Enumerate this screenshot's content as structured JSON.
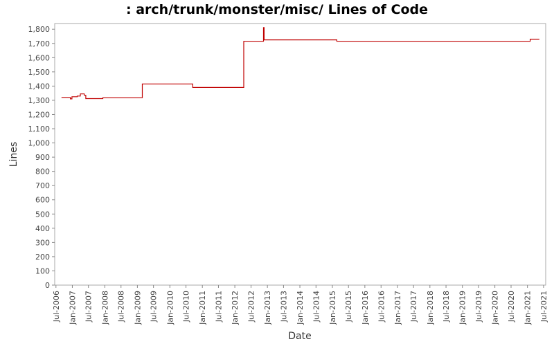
{
  "chart_data": {
    "type": "line",
    "title": ": arch/trunk/monster/misc/ Lines of Code",
    "xlabel": "Date",
    "ylabel": "Lines",
    "ylim": [
      0,
      1840
    ],
    "xlim": [
      "2006-06-17",
      "2021-07-25"
    ],
    "grid": false,
    "legend": "none",
    "yticks": [
      0,
      100,
      200,
      300,
      400,
      500,
      600,
      700,
      800,
      900,
      1000,
      1100,
      1200,
      1300,
      1400,
      1500,
      1600,
      1700,
      1800
    ],
    "ytick_labels": [
      "0",
      "100",
      "200",
      "300",
      "400",
      "500",
      "600",
      "700",
      "800",
      "900",
      "1,000",
      "1,100",
      "1,200",
      "1,300",
      "1,400",
      "1,500",
      "1,600",
      "1,700",
      "1,800"
    ],
    "xticks": [
      "2006-07-01",
      "2007-01-01",
      "2007-07-01",
      "2008-01-01",
      "2008-07-01",
      "2009-01-01",
      "2009-07-01",
      "2010-01-01",
      "2010-07-01",
      "2011-01-01",
      "2011-07-01",
      "2012-01-01",
      "2012-07-01",
      "2013-01-01",
      "2013-07-01",
      "2014-01-01",
      "2014-07-01",
      "2015-01-01",
      "2015-07-01",
      "2016-01-01",
      "2016-07-01",
      "2017-01-01",
      "2017-07-01",
      "2018-01-01",
      "2018-07-01",
      "2019-01-01",
      "2019-07-01",
      "2020-01-01",
      "2020-07-01",
      "2021-01-01",
      "2021-07-01"
    ],
    "xtick_labels": [
      "Jul-2006",
      "Jan-2007",
      "Jul-2007",
      "Jan-2008",
      "Jul-2008",
      "Jan-2009",
      "Jul-2009",
      "Jan-2010",
      "Jul-2010",
      "Jan-2011",
      "Jul-2011",
      "Jan-2012",
      "Jul-2012",
      "Jan-2013",
      "Jul-2013",
      "Jan-2014",
      "Jul-2014",
      "Jan-2015",
      "Jul-2015",
      "Jan-2016",
      "Jul-2016",
      "Jan-2017",
      "Jul-2017",
      "Jan-2018",
      "Jul-2018",
      "Jan-2019",
      "Jul-2019",
      "Jan-2020",
      "Jul-2020",
      "Jan-2021",
      "Jul-2021"
    ],
    "line_color": "#c00000",
    "series": [
      {
        "step": true,
        "x": [
          "2006-09-01",
          "2006-12-10",
          "2006-12-28",
          "2007-02-25",
          "2007-04-01",
          "2007-05-15",
          "2007-06-01",
          "2007-12-10",
          "2009-02-25",
          "2010-09-15",
          "2012-04-10",
          "2012-11-18",
          "2012-11-25",
          "2015-02-20",
          "2021-02-01",
          "2021-05-15"
        ],
        "y": [
          1320,
          1310,
          1325,
          1330,
          1345,
          1335,
          1312,
          1318,
          1415,
          1390,
          1715,
          1812,
          1725,
          1715,
          1730,
          1730
        ]
      }
    ]
  }
}
